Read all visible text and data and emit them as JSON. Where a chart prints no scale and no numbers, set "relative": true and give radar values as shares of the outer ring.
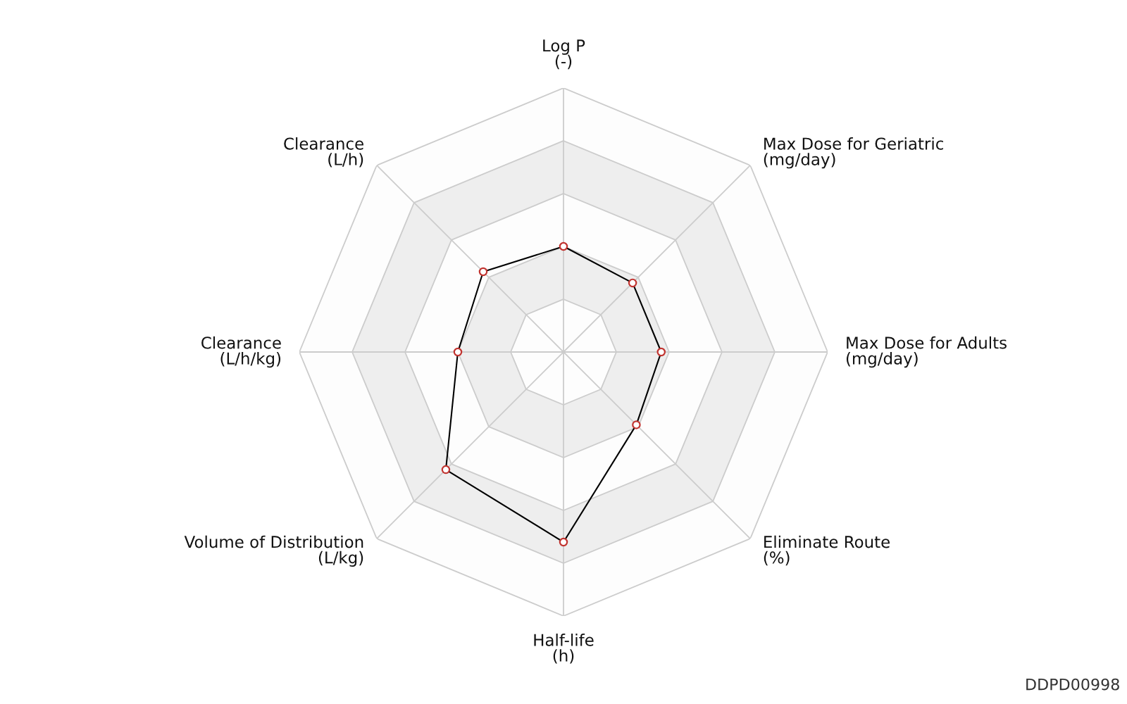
{
  "chart_data": {
    "type": "radar",
    "relative": true,
    "categories": [
      "Log P\n(-)",
      "Max Dose for Geriatric\n(mg/day)",
      "Max Dose for Adults\n(mg/day)",
      "Eliminate Route\n(%)",
      "Half-life\n(h)",
      "Volume of Distribution\n(L/kg)",
      "Clearance\n(L/h/kg)",
      "Clearance\n(L/h)"
    ],
    "series": [
      {
        "color": "#000000",
        "colors": [
          "#c23531",
          "#c23531",
          "#c23531",
          "#c23531",
          "#c23531",
          "#c23531",
          "#c23531",
          "#c23531"
        ],
        "values": [
          0.4,
          0.37,
          0.37,
          0.39,
          0.72,
          0.63,
          0.4,
          0.43
        ]
      }
    ],
    "marker": "circle",
    "grid": true,
    "annotations": [
      "DDPD00998"
    ]
  }
}
